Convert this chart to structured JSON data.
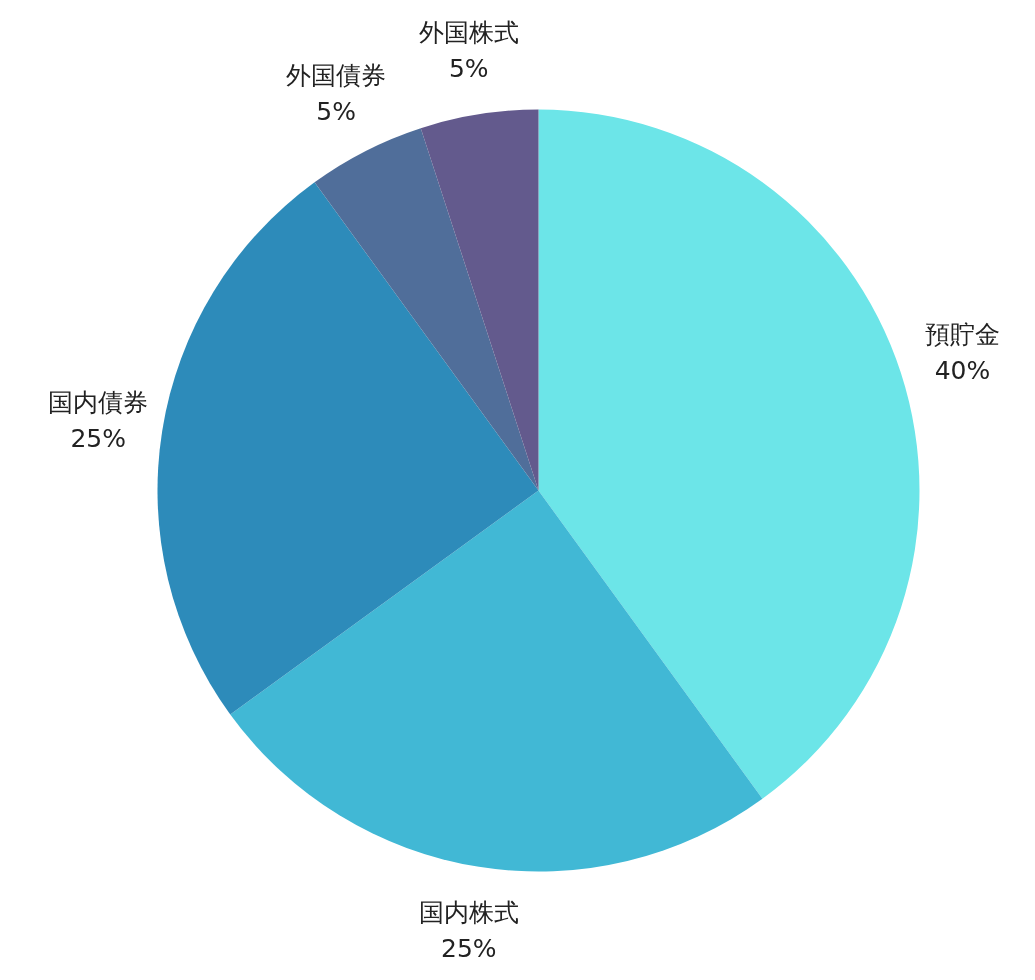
{
  "chart_data": {
    "type": "pie",
    "categories": [
      "預貯金",
      "国内株式",
      "国内債券",
      "外国債券",
      "外国株式"
    ],
    "values": [
      40,
      25,
      25,
      5,
      5
    ],
    "colors": [
      "#6ce5e8",
      "#41b8d5",
      "#2d8bba",
      "#506e9a",
      "#635a8d"
    ],
    "value_labels": [
      "40%",
      "25%",
      "25%",
      "5%",
      "5%"
    ]
  }
}
